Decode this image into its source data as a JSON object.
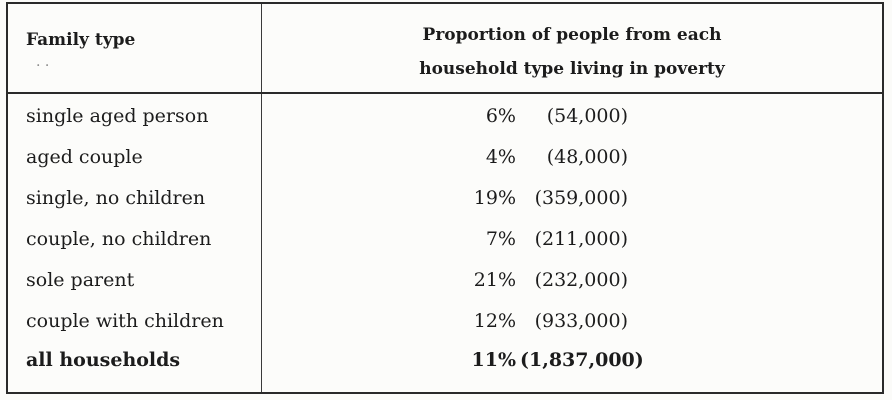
{
  "chart_data": {
    "type": "table",
    "columns": [
      "Family type",
      "Proportion of people from each household type living in poverty"
    ],
    "header": {
      "left": "Family type",
      "right_line1": "Proportion of people from each",
      "right_line2": "household type living in poverty",
      "dots": ". ."
    },
    "rows": [
      {
        "label": "single aged person",
        "percent": "6%",
        "count": "(54,000)"
      },
      {
        "label": "aged couple",
        "percent": "4%",
        "count": "(48,000)"
      },
      {
        "label": "single, no children",
        "percent": "19%",
        "count": "(359,000)"
      },
      {
        "label": "couple, no children",
        "percent": "7%",
        "count": "(211,000)"
      },
      {
        "label": "sole parent",
        "percent": "21%",
        "count": "(232,000)"
      },
      {
        "label": "couple with children",
        "percent": "12%",
        "count": "(933,000)"
      },
      {
        "label": "all households",
        "percent": "11%",
        "count": "(1,837,000)"
      }
    ]
  }
}
